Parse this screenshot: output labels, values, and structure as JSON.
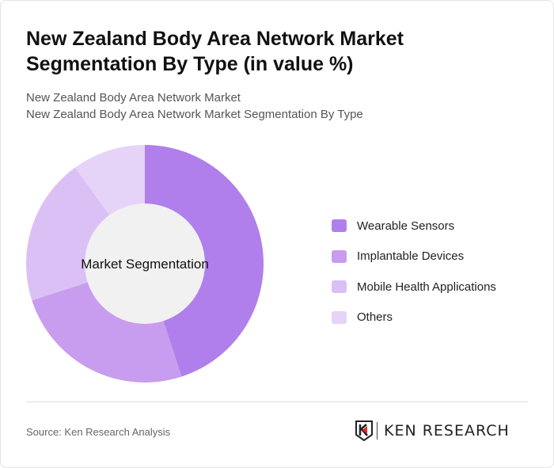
{
  "header": {
    "title": "New Zealand Body Area Network Market Segmentation By Type (in value %)",
    "subtitle1": "New Zealand Body Area Network Market",
    "subtitle2": "New Zealand Body Area Network Market Segmentation By Type"
  },
  "chart_data": {
    "type": "pie",
    "donut": true,
    "center_label": "Market Segmentation",
    "categories": [
      "Wearable Sensors",
      "Implantable Devices",
      "Mobile Health Applications",
      "Others"
    ],
    "values": [
      45,
      25,
      20,
      10
    ],
    "colors": [
      "#b07fec",
      "#c89cee",
      "#dbc0f5",
      "#e5d3f8"
    ],
    "legend_position": "right"
  },
  "footer": {
    "source": "Source: Ken Research Analysis",
    "logo_text": "KEN RESEARCH"
  }
}
